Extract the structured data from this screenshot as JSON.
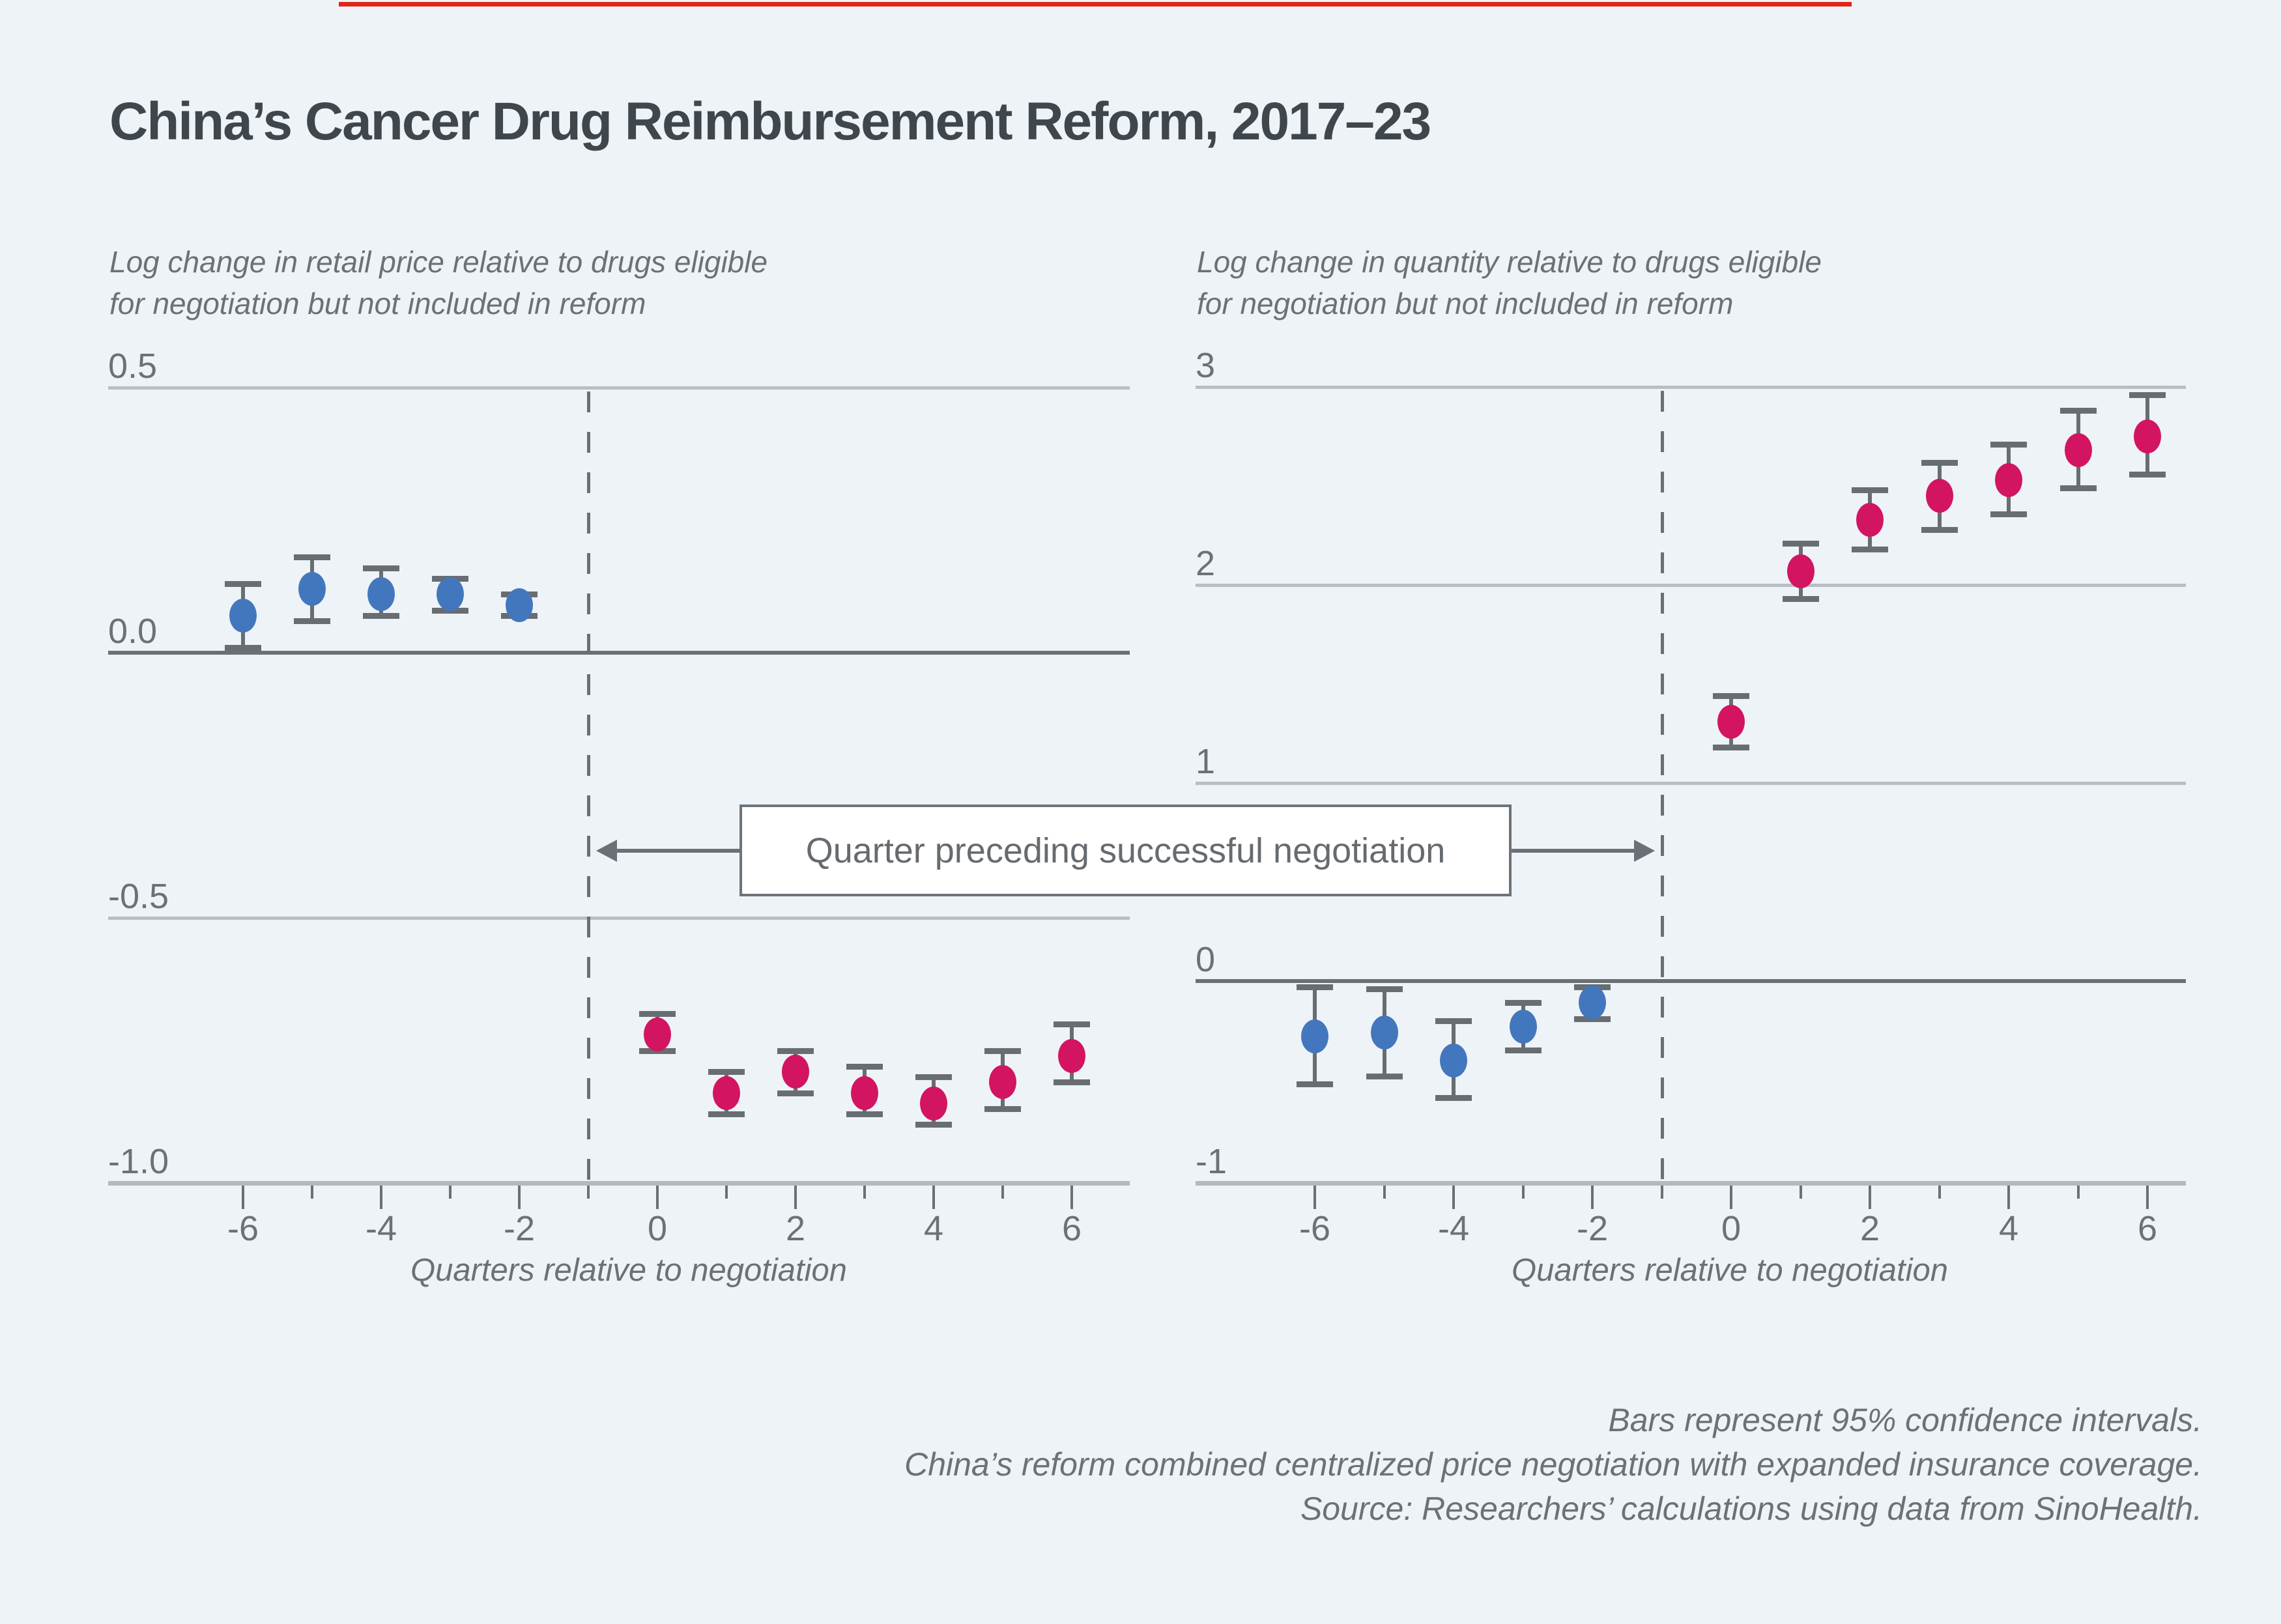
{
  "title": "China’s Cancer Drug Reimbursement Reform, 2017–23",
  "annotation": {
    "label": "Quarter preceding successful negotiation"
  },
  "notes": [
    "Bars represent 95% confidence intervals.",
    "China’s reform combined centralized price negotiation with expanded insurance coverage.",
    "Source: Researchers’ calculations using data from SinoHealth."
  ],
  "colors": {
    "background": "#eef3f7",
    "accent_bar": "#e1251b",
    "blue": "#4377bd",
    "red": "#d31460",
    "grid_light": "#b8bec3",
    "axis_dark": "#6a7075",
    "text_gray": "#6b7176",
    "title_text": "#3f464c"
  },
  "chart_data": [
    {
      "type": "scatter",
      "panel": "left",
      "subtitle_lines": [
        "Log change in retail price relative to drugs eligible",
        "for negotiation but not included in reform"
      ],
      "xlabel": "Quarters relative to negotiation",
      "xlim": [
        -6,
        6
      ],
      "ylim": [
        -1.0,
        0.5
      ],
      "grid": true,
      "labeled_x_ticks": [
        -6,
        -4,
        -2,
        0,
        2,
        4,
        6
      ],
      "x_tick_labels": [
        "-6",
        "-4",
        "-2",
        "0",
        "2",
        "4",
        "6"
      ],
      "y_ticks": [
        {
          "v": 0.5,
          "label": "0.5",
          "style": "light"
        },
        {
          "v": 0.0,
          "label": "0.0",
          "style": "zero"
        },
        {
          "v": -0.5,
          "label": "-0.5",
          "style": "light"
        },
        {
          "v": -1.0,
          "label": "-1.0",
          "style": "axis"
        }
      ],
      "vline_x": -1,
      "series": [
        {
          "name": "pre-negotiation",
          "color_key": "blue",
          "points": [
            {
              "x": -6,
              "y": 0.07,
              "lo": 0.01,
              "hi": 0.13
            },
            {
              "x": -5,
              "y": 0.12,
              "lo": 0.06,
              "hi": 0.18
            },
            {
              "x": -4,
              "y": 0.11,
              "lo": 0.07,
              "hi": 0.16
            },
            {
              "x": -3,
              "y": 0.11,
              "lo": 0.08,
              "hi": 0.14
            },
            {
              "x": -2,
              "y": 0.09,
              "lo": 0.07,
              "hi": 0.11
            }
          ]
        },
        {
          "name": "post-negotiation",
          "color_key": "red",
          "points": [
            {
              "x": 0,
              "y": -0.72,
              "lo": -0.75,
              "hi": -0.68
            },
            {
              "x": 1,
              "y": -0.83,
              "lo": -0.87,
              "hi": -0.79
            },
            {
              "x": 2,
              "y": -0.79,
              "lo": -0.83,
              "hi": -0.75
            },
            {
              "x": 3,
              "y": -0.83,
              "lo": -0.87,
              "hi": -0.78
            },
            {
              "x": 4,
              "y": -0.85,
              "lo": -0.89,
              "hi": -0.8
            },
            {
              "x": 5,
              "y": -0.81,
              "lo": -0.86,
              "hi": -0.75
            },
            {
              "x": 6,
              "y": -0.76,
              "lo": -0.81,
              "hi": -0.7
            }
          ]
        }
      ]
    },
    {
      "type": "scatter",
      "panel": "right",
      "subtitle_lines": [
        "Log change in quantity relative to drugs eligible",
        "for negotiation but not included in reform"
      ],
      "xlabel": "Quarters relative to negotiation",
      "xlim": [
        -6,
        6
      ],
      "ylim": [
        -1,
        3
      ],
      "grid": true,
      "labeled_x_ticks": [
        -6,
        -4,
        -2,
        0,
        2,
        4,
        6
      ],
      "x_tick_labels": [
        "-6",
        "-4",
        "-2",
        "0",
        "2",
        "4",
        "6"
      ],
      "y_ticks": [
        {
          "v": 3,
          "label": "3",
          "style": "light"
        },
        {
          "v": 2,
          "label": "2",
          "style": "light"
        },
        {
          "v": 1,
          "label": "1",
          "style": "light"
        },
        {
          "v": 0,
          "label": "0",
          "style": "zero"
        },
        {
          "v": -1,
          "label": "-1",
          "style": "axis"
        }
      ],
      "vline_x": -1,
      "series": [
        {
          "name": "pre-negotiation",
          "color_key": "blue",
          "points": [
            {
              "x": -6,
              "y": -0.28,
              "lo": -0.52,
              "hi": -0.03
            },
            {
              "x": -5,
              "y": -0.26,
              "lo": -0.48,
              "hi": -0.04
            },
            {
              "x": -4,
              "y": -0.4,
              "lo": -0.59,
              "hi": -0.2
            },
            {
              "x": -3,
              "y": -0.23,
              "lo": -0.35,
              "hi": -0.11
            },
            {
              "x": -2,
              "y": -0.11,
              "lo": -0.19,
              "hi": -0.03
            }
          ]
        },
        {
          "name": "post-negotiation",
          "color_key": "red",
          "points": [
            {
              "x": 0,
              "y": 1.31,
              "lo": 1.18,
              "hi": 1.44
            },
            {
              "x": 1,
              "y": 2.07,
              "lo": 1.93,
              "hi": 2.21
            },
            {
              "x": 2,
              "y": 2.33,
              "lo": 2.18,
              "hi": 2.48
            },
            {
              "x": 3,
              "y": 2.45,
              "lo": 2.28,
              "hi": 2.62
            },
            {
              "x": 4,
              "y": 2.53,
              "lo": 2.36,
              "hi": 2.71
            },
            {
              "x": 5,
              "y": 2.68,
              "lo": 2.49,
              "hi": 2.88
            },
            {
              "x": 6,
              "y": 2.75,
              "lo": 2.56,
              "hi": 2.96
            }
          ]
        }
      ]
    }
  ]
}
